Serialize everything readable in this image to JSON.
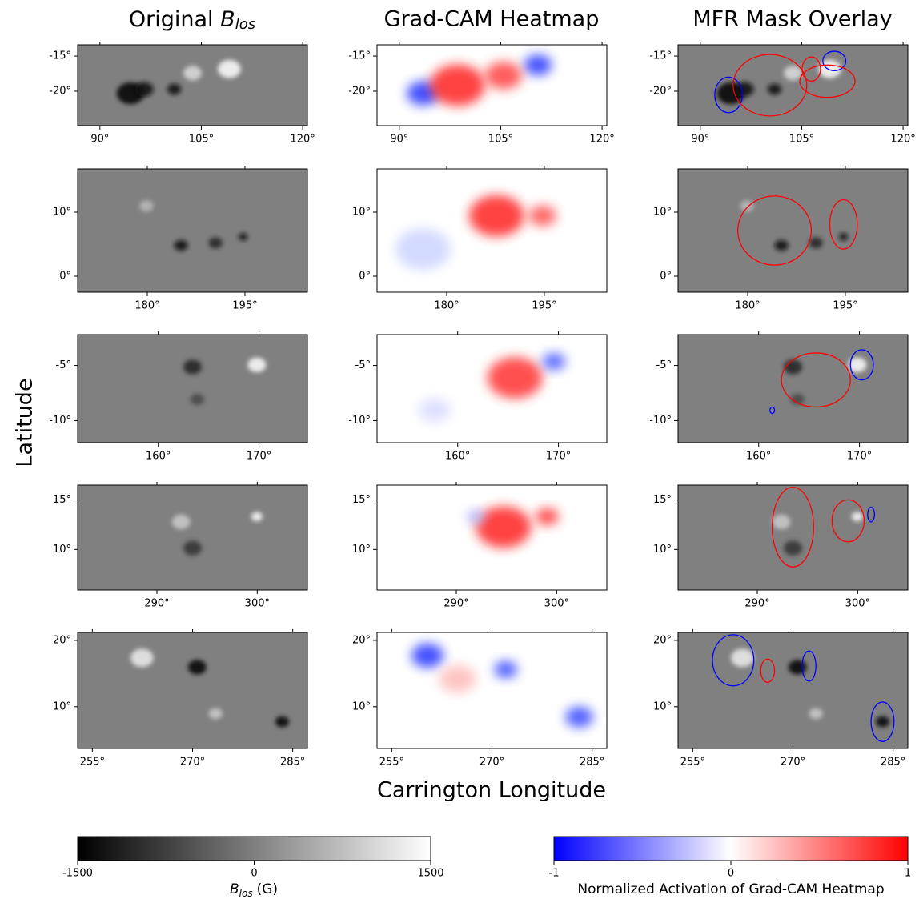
{
  "figure": {
    "columns": [
      {
        "title": {
          "text": "Original",
          "symbol": "B",
          "subscript": "los"
        }
      },
      {
        "title": {
          "text": "Grad-CAM Heatmap"
        }
      },
      {
        "title": {
          "text": "MFR Mask Overlay"
        }
      }
    ],
    "y_label": "Latitude",
    "x_label": "Carrington Longitude",
    "rows": [
      {
        "xlim": [
          86.7,
          120.7
        ],
        "ylim": [
          -24.9,
          -13.4
        ],
        "xticks": [
          {
            "value": 90,
            "label": "90°"
          },
          {
            "value": 105,
            "label": "105°"
          },
          {
            "value": 120,
            "label": "120°"
          }
        ],
        "yticks": [
          {
            "value": -15,
            "label": "-15°"
          },
          {
            "value": -20,
            "label": "-20°"
          }
        ]
      },
      {
        "xlim": [
          169.3,
          204.6
        ],
        "ylim": [
          -2.5,
          16.75
        ],
        "xticks": [
          {
            "value": 180,
            "label": "180°"
          },
          {
            "value": 195,
            "label": "195°"
          }
        ],
        "yticks": [
          {
            "value": 10,
            "label": "10°"
          },
          {
            "value": 0,
            "label": "0°"
          }
        ]
      },
      {
        "xlim": [
          152.0,
          174.8
        ],
        "ylim": [
          -12.0,
          -2.2
        ],
        "xticks": [
          {
            "value": 160,
            "label": "160°"
          },
          {
            "value": 170,
            "label": "170°"
          }
        ],
        "yticks": [
          {
            "value": -5,
            "label": "-5°"
          },
          {
            "value": -10,
            "label": "-10°"
          }
        ]
      },
      {
        "xlim": [
          282.1,
          305.0
        ],
        "ylim": [
          5.9,
          16.5
        ],
        "xticks": [
          {
            "value": 290,
            "label": "290°"
          },
          {
            "value": 300,
            "label": "300°"
          }
        ],
        "yticks": [
          {
            "value": 15,
            "label": "15°"
          },
          {
            "value": 10,
            "label": "10°"
          }
        ]
      },
      {
        "xlim": [
          252.8,
          287.2
        ],
        "ylim": [
          3.7,
          21.2
        ],
        "xticks": [
          {
            "value": 255,
            "label": "255°"
          },
          {
            "value": 270,
            "label": "270°"
          },
          {
            "value": 285,
            "label": "285°"
          }
        ],
        "yticks": [
          {
            "value": 20,
            "label": "20°"
          },
          {
            "value": 10,
            "label": "10°"
          }
        ]
      }
    ],
    "colorbars": [
      {
        "lim": [
          -1500,
          1500
        ],
        "ticks": [
          -1500,
          0,
          1500
        ],
        "colors": [
          "#000000",
          "#ffffff"
        ],
        "label": {
          "symbol": "B",
          "subscript": "los",
          "unit": "(G)"
        }
      },
      {
        "lim": [
          -1,
          1
        ],
        "ticks": [
          -1,
          0,
          1
        ],
        "colors": [
          "#0000ff",
          "#ffffff",
          "#ff0000"
        ],
        "label": {
          "text": "Normalized Activation of Grad-CAM Heatmap"
        }
      }
    ]
  }
}
